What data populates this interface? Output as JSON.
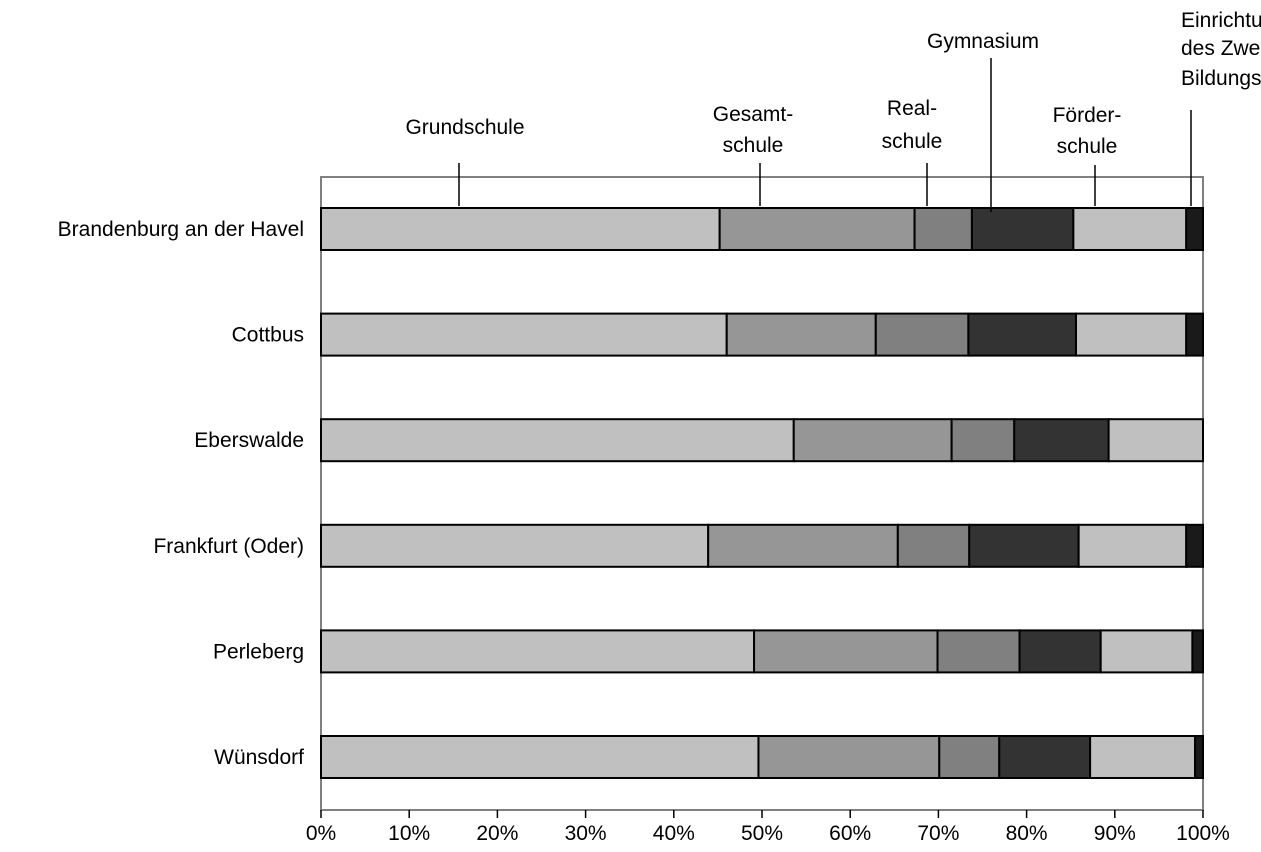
{
  "chart_data": {
    "type": "bar",
    "orientation": "horizontal",
    "stacked": true,
    "normalized": true,
    "categories": [
      "Brandenburg an der Havel",
      "Cottbus",
      "Eberswalde",
      "Frankfurt (Oder)",
      "Perleberg",
      "Wünsdorf"
    ],
    "series": [
      {
        "name": "Grundschule",
        "color": "#c0c0c0",
        "values": [
          45.2,
          46.0,
          53.6,
          43.9,
          49.1,
          49.6
        ],
        "label_lines": [
          "Grundschule"
        ]
      },
      {
        "name": "Gesamtschule",
        "color": "#969696",
        "values": [
          22.1,
          16.9,
          17.9,
          21.5,
          20.8,
          20.5
        ],
        "label_lines": [
          "Gesamt-",
          "schule"
        ]
      },
      {
        "name": "Realschule",
        "color": "#808080",
        "values": [
          6.5,
          10.5,
          7.1,
          8.1,
          9.3,
          6.8
        ],
        "label_lines": [
          "Real-",
          "schule"
        ]
      },
      {
        "name": "Gymnasium",
        "color": "#333333",
        "values": [
          11.5,
          12.2,
          10.7,
          12.4,
          9.2,
          10.3
        ],
        "label_lines": [
          "Gymnasium"
        ]
      },
      {
        "name": "Förderschule",
        "color": "#c0c0c0",
        "values": [
          12.8,
          12.5,
          10.7,
          12.2,
          10.4,
          11.9
        ],
        "label_lines": [
          "Förder-",
          "schule"
        ]
      },
      {
        "name": "Einrichtung des Zweiten Bildungsweges",
        "color": "#1a1a1a",
        "values": [
          1.9,
          1.9,
          0.0,
          1.9,
          1.2,
          0.9
        ],
        "label_lines": [
          "Einrichtung",
          "des Zweiten",
          "Bildungsweges"
        ]
      }
    ],
    "xlim": [
      0,
      100
    ],
    "xticks": [
      "0%",
      "10%",
      "20%",
      "30%",
      "40%",
      "50%",
      "60%",
      "70%",
      "80%",
      "90%",
      "100%"
    ],
    "grid": false,
    "legend": "annotations above bars"
  }
}
